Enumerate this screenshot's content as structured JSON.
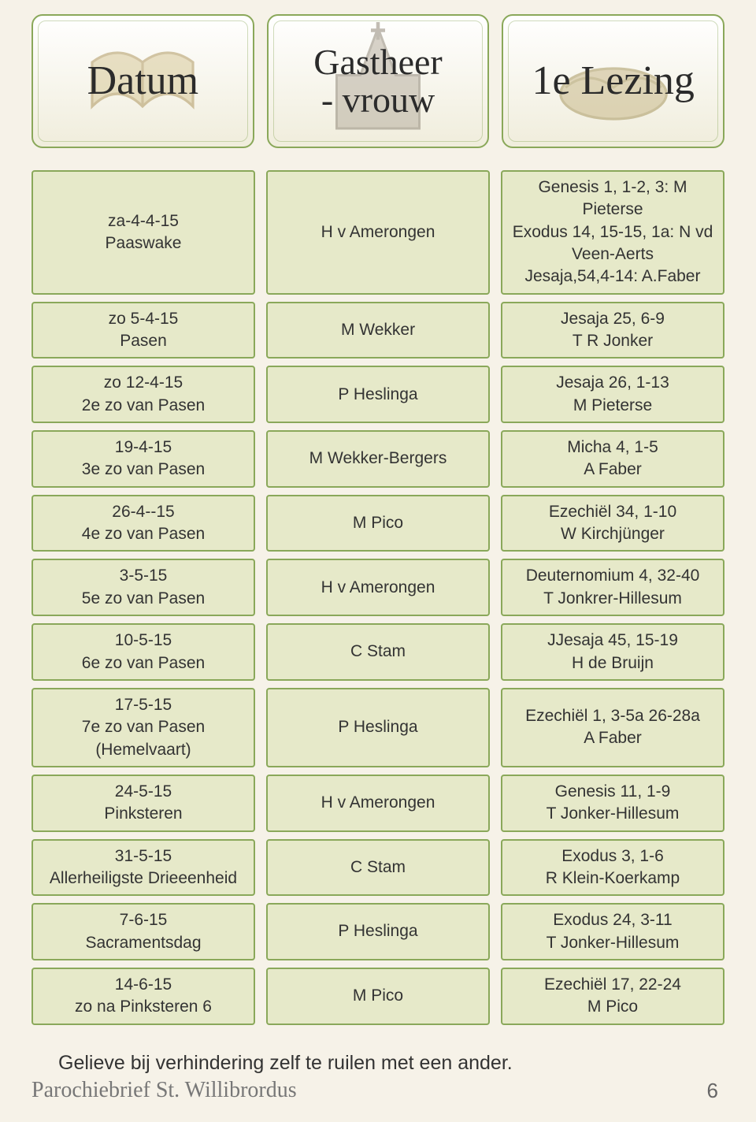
{
  "header": {
    "col1": "Datum",
    "col2": "Gastheer\n- vrouw",
    "col3": "1e Lezing"
  },
  "rows": [
    {
      "tall": true,
      "date_l1": "za-4-4-15",
      "date_l2": "Paaswake",
      "host_l1": "H v Amerongen",
      "read_l1": "Genesis 1, 1-2, 3: M Pieterse",
      "read_l2": "Exodus 14, 15-15, 1a: N vd Veen-Aerts",
      "read_l3": "Jesaja,54,4-14: A.Faber"
    },
    {
      "date_l1": "zo 5-4-15",
      "date_l2": "Pasen",
      "host_l1": "M Wekker",
      "read_l1": "Jesaja 25, 6-9",
      "read_l2": "T R Jonker"
    },
    {
      "date_l1": "zo 12-4-15",
      "date_l2": "2e zo van Pasen",
      "host_l1": "P Heslinga",
      "read_l1": "Jesaja 26, 1-13",
      "read_l2": "M Pieterse"
    },
    {
      "date_l1": "19-4-15",
      "date_l2": "3e zo van Pasen",
      "host_l1": "M Wekker-Bergers",
      "read_l1": "Micha 4, 1-5",
      "read_l2": "A Faber"
    },
    {
      "date_l1": "26-4--15",
      "date_l2": "4e zo van Pasen",
      "host_l1": "M Pico",
      "read_l1": "Ezechiël 34, 1-10",
      "read_l2": "W Kirchjünger"
    },
    {
      "date_l1": "3-5-15",
      "date_l2": "5e zo van Pasen",
      "host_l1": "H v Amerongen",
      "read_l1": "Deuternomium 4, 32-40",
      "read_l2": "T Jonkrer-Hillesum"
    },
    {
      "date_l1": "10-5-15",
      "date_l2": "6e zo van Pasen",
      "host_l1": "C Stam",
      "read_l1": "JJesaja 45, 15-19",
      "read_l2": "H de Bruijn"
    },
    {
      "date_l1": "17-5-15",
      "date_l2": "7e zo van Pasen (Hemelvaart)",
      "host_l1": "P Heslinga",
      "read_l1": "Ezechiël 1, 3-5a 26-28a",
      "read_l2": "A Faber"
    },
    {
      "date_l1": "24-5-15",
      "date_l2": "Pinksteren",
      "host_l1": "H v Amerongen",
      "read_l1": "Genesis 11, 1-9",
      "read_l2": "T Jonker-Hillesum"
    },
    {
      "date_l1": "31-5-15",
      "date_l2": "Allerheiligste Drieeenheid",
      "host_l1": "C Stam",
      "read_l1": "Exodus 3, 1-6",
      "read_l2": "R Klein-Koerkamp"
    },
    {
      "date_l1": "7-6-15",
      "date_l2": "Sacramentsdag",
      "host_l1": "P Heslinga",
      "read_l1": "Exodus 24, 3-11",
      "read_l2": "T Jonker-Hillesum"
    },
    {
      "date_l1": "14-6-15",
      "date_l2": "zo na Pinksteren 6",
      "host_l1": "M Pico",
      "read_l1": "Ezechiël 17, 22-24",
      "read_l2": "M Pico"
    }
  ],
  "note": "Gelieve bij verhindering zelf te ruilen met een ander.",
  "footer": {
    "title": "Parochiebrief St. Willibrordus",
    "page": "6"
  },
  "style": {
    "cell_bg": "#e6e9c9",
    "cell_border": "#8aa85a",
    "page_bg": "#f6f2e8",
    "header_font": "Brush Script MT",
    "body_font": "Trebuchet MS",
    "body_fontsize": 21,
    "header_fontsize": 52
  }
}
